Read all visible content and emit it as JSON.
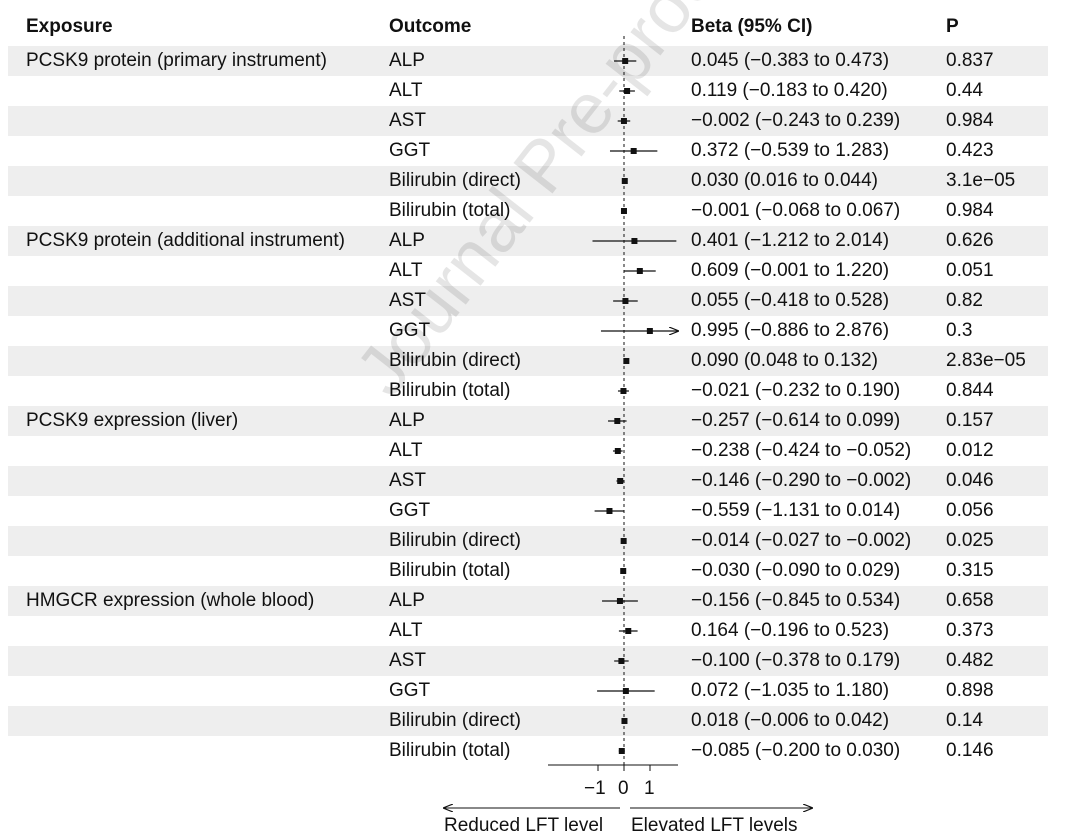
{
  "header": {
    "exposure": "Exposure",
    "outcome": "Outcome",
    "beta": "Beta (95% CI)",
    "p": "P"
  },
  "watermark": "Journal Pre-proof",
  "chart_data": {
    "type": "forest",
    "null_value": 0,
    "xlim": [
      -3,
      2
    ],
    "xticks": [
      -1,
      0,
      1
    ],
    "xtick_labels": [
      "−1",
      "0",
      "1"
    ],
    "direction_labels": {
      "left": "Reduced LFT level",
      "right": "Elevated LFT levels"
    },
    "rows": [
      {
        "exposure": "PCSK9 protein (primary instrument)",
        "outcome": "ALP",
        "beta": 0.045,
        "lo": -0.383,
        "hi": 0.473,
        "ci_text": "0.045 (−0.383 to 0.473)",
        "p": "0.837"
      },
      {
        "exposure": "",
        "outcome": "ALT",
        "beta": 0.119,
        "lo": -0.183,
        "hi": 0.42,
        "ci_text": "0.119 (−0.183 to 0.420)",
        "p": "0.44"
      },
      {
        "exposure": "",
        "outcome": "AST",
        "beta": -0.002,
        "lo": -0.243,
        "hi": 0.239,
        "ci_text": "−0.002 (−0.243 to 0.239)",
        "p": "0.984"
      },
      {
        "exposure": "",
        "outcome": "GGT",
        "beta": 0.372,
        "lo": -0.539,
        "hi": 1.283,
        "ci_text": "0.372 (−0.539 to 1.283)",
        "p": "0.423"
      },
      {
        "exposure": "",
        "outcome": "Bilirubin (direct)",
        "beta": 0.03,
        "lo": 0.016,
        "hi": 0.044,
        "ci_text": "0.030 (0.016 to 0.044)",
        "p": "3.1e−05"
      },
      {
        "exposure": "",
        "outcome": "Bilirubin (total)",
        "beta": -0.001,
        "lo": -0.068,
        "hi": 0.067,
        "ci_text": "−0.001 (−0.068 to 0.067)",
        "p": "0.984"
      },
      {
        "exposure": "PCSK9 protein (additional instrument)",
        "outcome": "ALP",
        "beta": 0.401,
        "lo": -1.212,
        "hi": 2.014,
        "ci_text": "0.401 (−1.212 to 2.014)",
        "p": "0.626"
      },
      {
        "exposure": "",
        "outcome": "ALT",
        "beta": 0.609,
        "lo": -0.001,
        "hi": 1.22,
        "ci_text": "0.609 (−0.001 to 1.220)",
        "p": "0.051"
      },
      {
        "exposure": "",
        "outcome": "AST",
        "beta": 0.055,
        "lo": -0.418,
        "hi": 0.528,
        "ci_text": "0.055 (−0.418 to 0.528)",
        "p": "0.82"
      },
      {
        "exposure": "",
        "outcome": "GGT",
        "beta": 0.995,
        "lo": -0.886,
        "hi": 2.876,
        "ci_text": "0.995 (−0.886 to 2.876)",
        "p": "0.3"
      },
      {
        "exposure": "",
        "outcome": "Bilirubin (direct)",
        "beta": 0.09,
        "lo": 0.048,
        "hi": 0.132,
        "ci_text": "0.090 (0.048 to 0.132)",
        "p": "2.83e−05"
      },
      {
        "exposure": "",
        "outcome": "Bilirubin (total)",
        "beta": -0.021,
        "lo": -0.232,
        "hi": 0.19,
        "ci_text": "−0.021 (−0.232 to 0.190)",
        "p": "0.844"
      },
      {
        "exposure": "PCSK9 expression (liver)",
        "outcome": "ALP",
        "beta": -0.257,
        "lo": -0.614,
        "hi": 0.099,
        "ci_text": "−0.257 (−0.614 to 0.099)",
        "p": "0.157"
      },
      {
        "exposure": "",
        "outcome": "ALT",
        "beta": -0.238,
        "lo": -0.424,
        "hi": -0.052,
        "ci_text": "−0.238 (−0.424 to −0.052)",
        "p": "0.012"
      },
      {
        "exposure": "",
        "outcome": "AST",
        "beta": -0.146,
        "lo": -0.29,
        "hi": -0.002,
        "ci_text": "−0.146 (−0.290 to −0.002)",
        "p": "0.046"
      },
      {
        "exposure": "",
        "outcome": "GGT",
        "beta": -0.559,
        "lo": -1.131,
        "hi": 0.014,
        "ci_text": "−0.559 (−1.131 to 0.014)",
        "p": "0.056"
      },
      {
        "exposure": "",
        "outcome": "Bilirubin (direct)",
        "beta": -0.014,
        "lo": -0.027,
        "hi": -0.002,
        "ci_text": "−0.014 (−0.027 to −0.002)",
        "p": "0.025"
      },
      {
        "exposure": "",
        "outcome": "Bilirubin (total)",
        "beta": -0.03,
        "lo": -0.09,
        "hi": 0.029,
        "ci_text": "−0.030 (−0.090 to 0.029)",
        "p": "0.315"
      },
      {
        "exposure": "HMGCR expression (whole blood)",
        "outcome": "ALP",
        "beta": -0.156,
        "lo": -0.845,
        "hi": 0.534,
        "ci_text": "−0.156 (−0.845 to 0.534)",
        "p": "0.658"
      },
      {
        "exposure": "",
        "outcome": "ALT",
        "beta": 0.164,
        "lo": -0.196,
        "hi": 0.523,
        "ci_text": "0.164 (−0.196 to 0.523)",
        "p": "0.373"
      },
      {
        "exposure": "",
        "outcome": "AST",
        "beta": -0.1,
        "lo": -0.378,
        "hi": 0.179,
        "ci_text": "−0.100 (−0.378 to 0.179)",
        "p": "0.482"
      },
      {
        "exposure": "",
        "outcome": "GGT",
        "beta": 0.072,
        "lo": -1.035,
        "hi": 1.18,
        "ci_text": "0.072 (−1.035 to 1.180)",
        "p": "0.898"
      },
      {
        "exposure": "",
        "outcome": "Bilirubin (direct)",
        "beta": 0.018,
        "lo": -0.006,
        "hi": 0.042,
        "ci_text": "0.018 (−0.006 to 0.042)",
        "p": "0.14"
      },
      {
        "exposure": "",
        "outcome": "Bilirubin (total)",
        "beta": -0.085,
        "lo": -0.2,
        "hi": 0.03,
        "ci_text": "−0.085 (−0.200 to 0.030)",
        "p": "0.146"
      }
    ],
    "colors": {
      "stripe": "#eeeeee",
      "ink": "#111111"
    }
  }
}
